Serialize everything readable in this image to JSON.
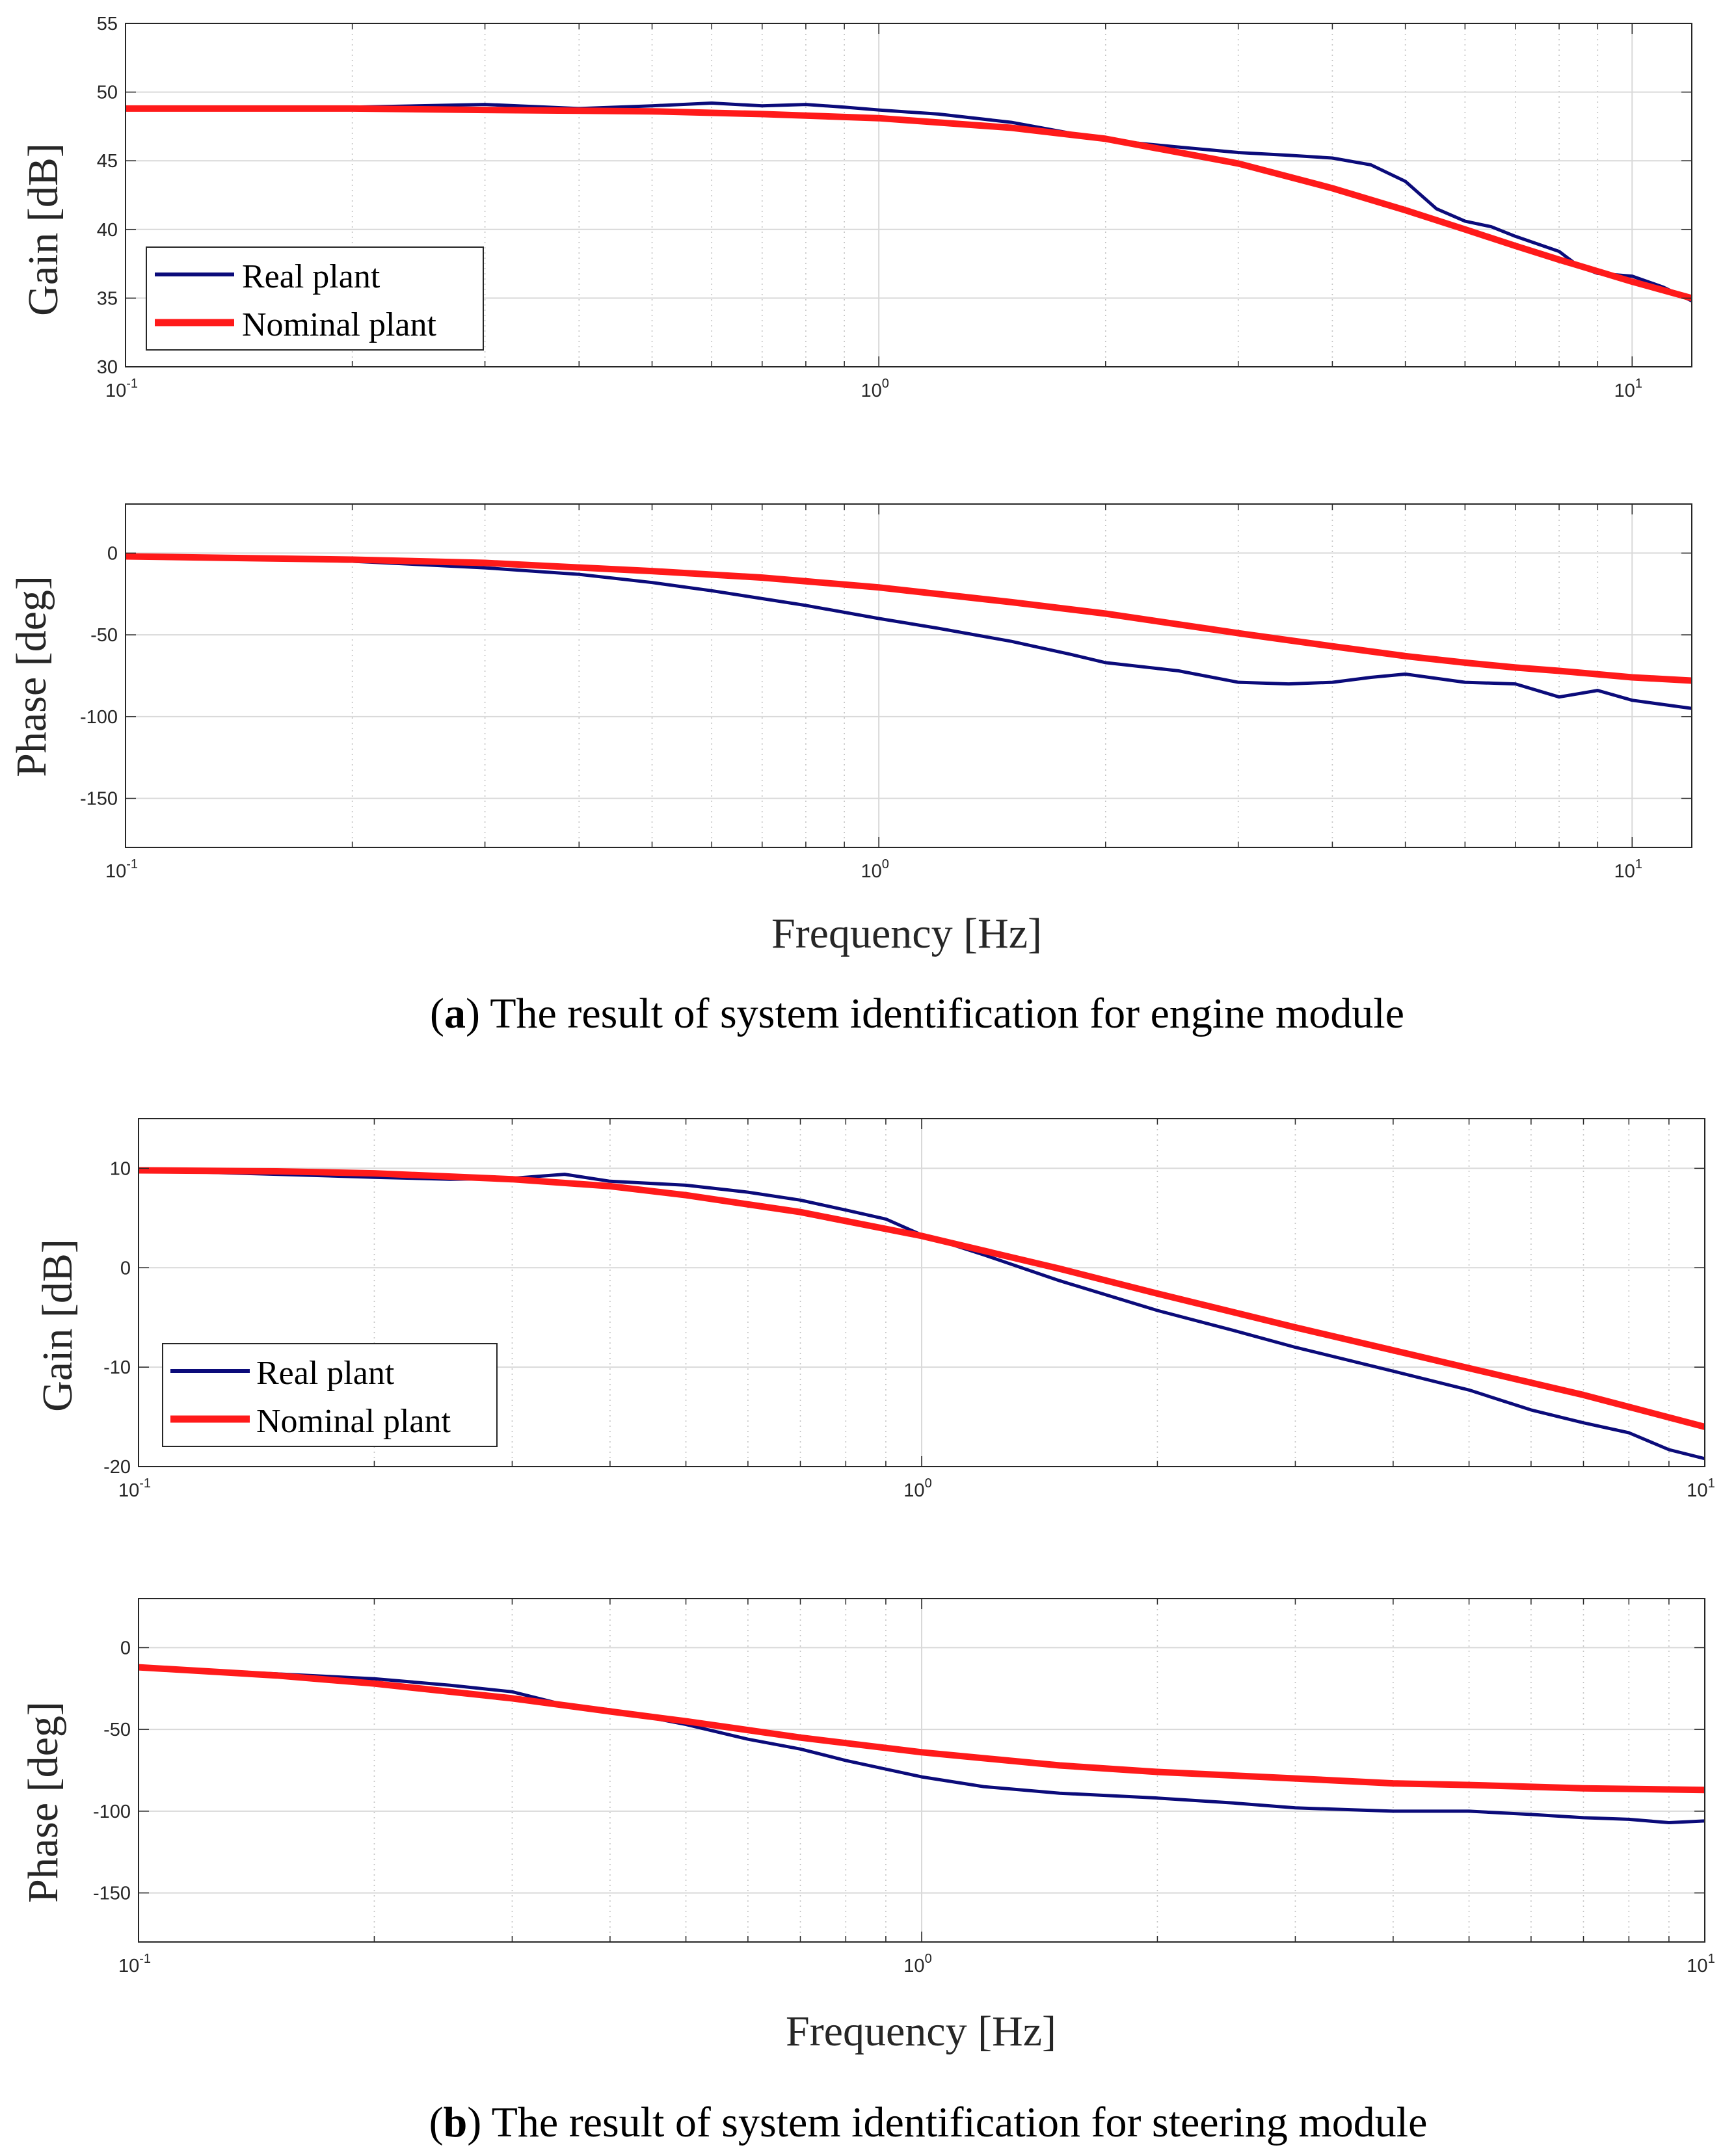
{
  "colors": {
    "real": "#0b0b7a",
    "nominal": "#ff1a1a",
    "grid_major": "#d9d9d9",
    "grid_minor": "#c4c4c4",
    "axis": "#262626"
  },
  "figures": [
    {
      "caption": {
        "letter": "a",
        "text": " The result of system identification for engine module"
      },
      "legend": {
        "real": "Real plant",
        "nominal": "Nominal plant"
      },
      "xlabel": "Frequency [Hz]"
    },
    {
      "caption": {
        "letter": "b",
        "text": " The result of system identification for steering module"
      },
      "legend": {
        "real": "Real plant",
        "nominal": "Nominal plant"
      },
      "xlabel": "Frequency [Hz]"
    }
  ],
  "chart_data": [
    {
      "id": "a-gain",
      "type": "line",
      "ylabel": "Gain [dB]",
      "xscale": "log",
      "xlim": [
        0.1,
        12
      ],
      "ylim": [
        30,
        55
      ],
      "yticks": [
        30,
        35,
        40,
        45,
        50,
        55
      ],
      "xticks": [
        0.1,
        1,
        10
      ],
      "xtick_labels": [
        {
          "base": "10",
          "exp": "-1"
        },
        {
          "base": "10",
          "exp": "0"
        },
        {
          "base": "10",
          "exp": "1"
        }
      ],
      "legend_position": "bottom-left",
      "grid": true,
      "series": [
        {
          "name": "Real plant",
          "x": [
            0.1,
            0.2,
            0.3,
            0.4,
            0.5,
            0.6,
            0.7,
            0.8,
            0.9,
            1.0,
            1.2,
            1.5,
            1.8,
            2.0,
            2.5,
            3.0,
            3.5,
            4.0,
            4.5,
            5.0,
            5.5,
            6.0,
            6.5,
            7.0,
            8.0,
            8.5,
            9.0,
            10.0,
            11.0,
            12.0
          ],
          "y": [
            48.8,
            48.9,
            49.1,
            48.8,
            49.0,
            49.2,
            49.0,
            49.1,
            48.9,
            48.7,
            48.4,
            47.8,
            47.0,
            46.5,
            46.0,
            45.6,
            45.4,
            45.2,
            44.7,
            43.5,
            41.5,
            40.6,
            40.2,
            39.5,
            38.4,
            37.3,
            36.8,
            36.6,
            35.8,
            34.8
          ]
        },
        {
          "name": "Nominal plant",
          "x": [
            0.1,
            0.2,
            0.3,
            0.5,
            0.7,
            1.0,
            1.5,
            2.0,
            3.0,
            4.0,
            5.0,
            6.0,
            7.0,
            8.0,
            10.0,
            12.0
          ],
          "y": [
            48.8,
            48.8,
            48.7,
            48.6,
            48.4,
            48.1,
            47.4,
            46.6,
            44.8,
            43.0,
            41.4,
            40.0,
            38.8,
            37.8,
            36.2,
            35.0
          ]
        }
      ]
    },
    {
      "id": "a-phase",
      "type": "line",
      "ylabel": "Phase [deg]",
      "xscale": "log",
      "xlim": [
        0.1,
        12
      ],
      "ylim": [
        -180,
        30
      ],
      "yticks": [
        -150,
        -100,
        -50,
        0
      ],
      "xticks": [
        0.1,
        1,
        10
      ],
      "xtick_labels": [
        {
          "base": "10",
          "exp": "-1"
        },
        {
          "base": "10",
          "exp": "0"
        },
        {
          "base": "10",
          "exp": "1"
        }
      ],
      "grid": true,
      "series": [
        {
          "name": "Real plant",
          "x": [
            0.1,
            0.2,
            0.3,
            0.4,
            0.5,
            0.6,
            0.8,
            1.0,
            1.2,
            1.5,
            1.8,
            2.0,
            2.5,
            3.0,
            3.5,
            4.0,
            4.5,
            5.0,
            6.0,
            7.0,
            8.0,
            9.0,
            10.0,
            12.0
          ],
          "y": [
            -2,
            -5,
            -9,
            -13,
            -18,
            -23,
            -32,
            -40,
            -46,
            -54,
            -62,
            -67,
            -72,
            -79,
            -80,
            -79,
            -76,
            -74,
            -79,
            -80,
            -88,
            -84,
            -90,
            -95
          ]
        },
        {
          "name": "Nominal plant",
          "x": [
            0.1,
            0.2,
            0.3,
            0.5,
            0.7,
            1.0,
            1.5,
            2.0,
            3.0,
            4.0,
            5.0,
            6.0,
            7.0,
            8.0,
            10.0,
            12.0
          ],
          "y": [
            -2,
            -4,
            -6,
            -11,
            -15,
            -21,
            -30,
            -37,
            -49,
            -57,
            -63,
            -67,
            -70,
            -72,
            -76,
            -78
          ]
        }
      ]
    },
    {
      "id": "b-gain",
      "type": "line",
      "ylabel": "Gain [dB]",
      "xscale": "log",
      "xlim": [
        0.1,
        10
      ],
      "ylim": [
        -20,
        15
      ],
      "yticks": [
        -20,
        -10,
        0,
        10
      ],
      "xticks": [
        0.1,
        1,
        10
      ],
      "xtick_labels": [
        {
          "base": "10",
          "exp": "-1"
        },
        {
          "base": "10",
          "exp": "0"
        },
        {
          "base": "10",
          "exp": "1"
        }
      ],
      "legend_position": "bottom-left",
      "grid": true,
      "series": [
        {
          "name": "Real plant",
          "x": [
            0.1,
            0.15,
            0.2,
            0.25,
            0.3,
            0.35,
            0.4,
            0.5,
            0.6,
            0.7,
            0.8,
            0.9,
            1.0,
            1.2,
            1.5,
            2.0,
            2.5,
            3.0,
            4.0,
            5.0,
            6.0,
            7.0,
            8.0,
            9.0,
            10.0
          ],
          "y": [
            9.8,
            9.4,
            9.1,
            8.9,
            9.0,
            9.4,
            8.7,
            8.3,
            7.6,
            6.8,
            5.8,
            4.9,
            3.3,
            1.3,
            -1.3,
            -4.3,
            -6.3,
            -8.0,
            -10.4,
            -12.3,
            -14.3,
            -15.6,
            -16.6,
            -18.3,
            -19.2
          ]
        },
        {
          "name": "Nominal plant",
          "x": [
            0.1,
            0.15,
            0.2,
            0.3,
            0.4,
            0.5,
            0.7,
            1.0,
            1.5,
            2.0,
            3.0,
            4.0,
            5.0,
            7.0,
            10.0
          ],
          "y": [
            9.8,
            9.7,
            9.5,
            8.9,
            8.2,
            7.3,
            5.6,
            3.2,
            -0.1,
            -2.6,
            -6.0,
            -8.3,
            -10.1,
            -12.8,
            -16.0
          ]
        }
      ]
    },
    {
      "id": "b-phase",
      "type": "line",
      "ylabel": "Phase [deg]",
      "xscale": "log",
      "xlim": [
        0.1,
        10
      ],
      "ylim": [
        -180,
        30
      ],
      "yticks": [
        -150,
        -100,
        -50,
        0
      ],
      "xticks": [
        0.1,
        1,
        10
      ],
      "xtick_labels": [
        {
          "base": "10",
          "exp": "-1"
        },
        {
          "base": "10",
          "exp": "0"
        },
        {
          "base": "10",
          "exp": "1"
        }
      ],
      "grid": true,
      "series": [
        {
          "name": "Real plant",
          "x": [
            0.1,
            0.15,
            0.2,
            0.25,
            0.3,
            0.35,
            0.4,
            0.5,
            0.6,
            0.7,
            0.8,
            1.0,
            1.2,
            1.5,
            2.0,
            2.5,
            3.0,
            4.0,
            5.0,
            6.0,
            7.0,
            8.0,
            9.0,
            10.0
          ],
          "y": [
            -12,
            -16,
            -19,
            -23,
            -27,
            -35,
            -38,
            -47,
            -56,
            -62,
            -69,
            -79,
            -85,
            -89,
            -92,
            -95,
            -98,
            -100,
            -100,
            -102,
            -104,
            -105,
            -107,
            -106
          ]
        },
        {
          "name": "Nominal plant",
          "x": [
            0.1,
            0.15,
            0.2,
            0.3,
            0.4,
            0.5,
            0.7,
            1.0,
            1.5,
            2.0,
            3.0,
            4.0,
            5.0,
            7.0,
            10.0
          ],
          "y": [
            -12,
            -17,
            -22,
            -31,
            -39,
            -45,
            -55,
            -64,
            -72,
            -76,
            -80,
            -83,
            -84,
            -86,
            -87
          ]
        }
      ]
    }
  ]
}
